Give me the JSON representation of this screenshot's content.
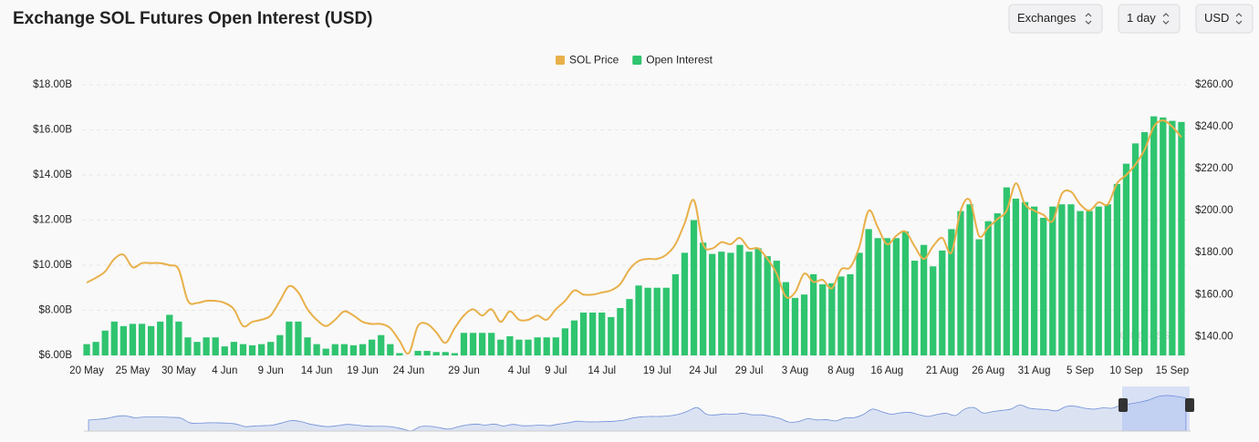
{
  "header": {
    "title": "Exchange SOL Futures Open Interest (USD)"
  },
  "controls": [
    "Exchanges",
    "1 day",
    "USD"
  ],
  "watermark": "coinglass",
  "chart_data": {
    "type": "bar-line",
    "categories": [
      "20 May",
      null,
      null,
      null,
      null,
      "25 May",
      null,
      null,
      null,
      null,
      "30 May",
      null,
      null,
      null,
      null,
      "4 Jun",
      null,
      null,
      null,
      null,
      "9 Jun",
      null,
      null,
      null,
      null,
      "14 Jun",
      null,
      null,
      null,
      null,
      "19 Jun",
      null,
      null,
      null,
      null,
      "24 Jun",
      null,
      null,
      null,
      null,
      null,
      "29 Jun",
      null,
      null,
      null,
      null,
      null,
      "4 Jul",
      null,
      null,
      null,
      "9 Jul",
      null,
      null,
      null,
      null,
      "14 Jul",
      null,
      null,
      null,
      null,
      null,
      "19 Jul",
      null,
      null,
      null,
      null,
      "24 Jul",
      null,
      null,
      null,
      null,
      "29 Jul",
      null,
      null,
      null,
      null,
      "3 Aug",
      null,
      null,
      null,
      null,
      "8 Aug",
      null,
      null,
      null,
      null,
      "16 Aug",
      null,
      null,
      null,
      null,
      null,
      "21 Aug",
      null,
      null,
      null,
      null,
      "26 Aug",
      null,
      null,
      null,
      null,
      "31 Aug",
      null,
      null,
      null,
      null,
      "5 Sep",
      null,
      null,
      null,
      null,
      "10 Sep",
      null,
      null,
      null,
      null,
      "15 Sep",
      null
    ],
    "series": [
      {
        "name": "SOL Price",
        "type": "line",
        "axis": "y2",
        "color": "#e8b04a",
        "values": [
          165.7,
          168,
          171,
          177,
          179,
          173,
          175,
          175,
          175,
          174,
          172,
          157,
          156,
          157,
          157,
          156,
          153,
          145,
          147,
          148,
          150,
          157,
          164,
          161,
          153,
          148,
          145,
          148,
          152,
          150,
          147,
          146,
          146,
          144,
          138,
          132,
          145,
          146,
          142,
          137,
          144,
          150,
          153,
          150,
          153,
          147,
          152,
          148,
          148,
          150,
          148,
          153,
          157,
          162,
          160,
          160,
          161,
          162,
          165,
          172,
          176,
          177,
          177,
          179,
          184,
          194,
          205,
          184,
          182,
          185,
          184,
          187,
          182,
          182,
          177,
          170,
          159,
          161,
          170,
          166,
          167,
          163,
          172,
          173,
          183,
          200,
          192,
          184,
          188,
          190,
          183,
          177,
          183,
          187,
          180,
          200,
          205,
          188,
          192,
          196,
          200,
          213,
          203,
          200,
          198,
          195,
          208,
          209,
          203,
          200,
          204,
          203,
          213,
          217,
          222,
          229,
          240,
          243,
          240,
          235
        ]
      },
      {
        "name": "Open Interest",
        "type": "bar",
        "color": "#2fc46f",
        "values": [
          6.5,
          6.6,
          7.1,
          7.5,
          7.3,
          7.4,
          7.4,
          7.3,
          7.5,
          7.8,
          7.5,
          6.8,
          6.6,
          6.8,
          6.8,
          6.4,
          6.6,
          6.5,
          6.45,
          6.5,
          6.6,
          6.9,
          7.5,
          7.5,
          6.8,
          6.5,
          6.3,
          6.5,
          6.5,
          6.45,
          6.5,
          6.7,
          6.9,
          6.5,
          6.1,
          6.0,
          6.2,
          6.2,
          6.15,
          6.15,
          6.1,
          7.0,
          7.0,
          7.0,
          7.0,
          6.7,
          6.85,
          6.7,
          6.7,
          6.8,
          6.8,
          6.8,
          7.2,
          7.55,
          7.9,
          7.9,
          7.9,
          7.7,
          8.1,
          8.5,
          9.1,
          9.0,
          9.0,
          9.0,
          9.6,
          10.55,
          12.0,
          11.0,
          10.5,
          10.6,
          10.55,
          10.9,
          10.6,
          10.75,
          10.4,
          10.2,
          9.25,
          8.55,
          8.7,
          9.6,
          9.15,
          9.2,
          9.5,
          9.6,
          10.55,
          11.6,
          11.2,
          11.2,
          11.2,
          11.5,
          10.2,
          10.9,
          9.95,
          10.65,
          11.6,
          12.4,
          12.7,
          11.15,
          11.95,
          12.3,
          13.45,
          12.95,
          12.8,
          12.6,
          12.1,
          12.6,
          12.7,
          12.7,
          12.4,
          12.4,
          12.6,
          12.7,
          13.6,
          14.5,
          15.4,
          15.9,
          16.6,
          16.55,
          16.4,
          16.35
        ]
      }
    ],
    "ylim": [
      6,
      18
    ],
    "yticks": [
      {
        "value": 6,
        "label": "$6.00B"
      },
      {
        "value": 8,
        "label": "$8.00B"
      },
      {
        "value": 10,
        "label": "$10.00B"
      },
      {
        "value": 12,
        "label": "$12.00B"
      },
      {
        "value": 14,
        "label": "$14.00B"
      },
      {
        "value": 16,
        "label": "$16.00B"
      },
      {
        "value": 18,
        "label": "$18.00B"
      }
    ],
    "y2lim": [
      131,
      260
    ],
    "y2ticks": [
      {
        "value": 140,
        "label": "$140.00"
      },
      {
        "value": 160,
        "label": "$160.00"
      },
      {
        "value": 180,
        "label": "$180.00"
      },
      {
        "value": 200,
        "label": "$200.00"
      },
      {
        "value": 220,
        "label": "$220.00"
      },
      {
        "value": 240,
        "label": "$240.00"
      },
      {
        "value": 260,
        "label": "$260.00"
      }
    ],
    "grid": true,
    "legend": "top"
  }
}
